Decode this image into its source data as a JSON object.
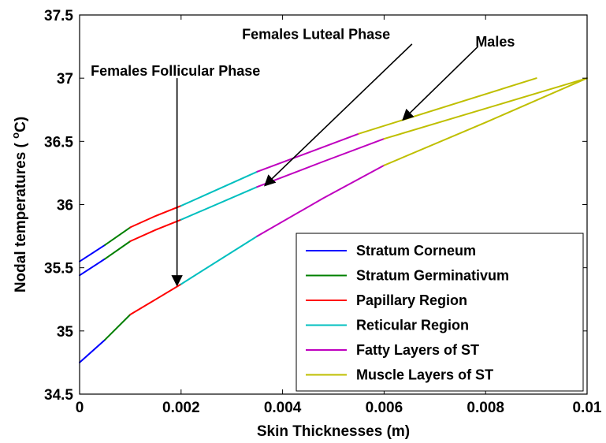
{
  "chart_data": {
    "type": "line",
    "xlabel": "Skin Thicknesses  (m)",
    "ylabel_main": "Nodal temperatures ( ",
    "ylabel_sup": "o",
    "ylabel_end": "C)",
    "xlim": [
      0,
      0.01
    ],
    "ylim": [
      34.5,
      37.5
    ],
    "xticks": [
      "0",
      "0.002",
      "0.004",
      "0.006",
      "0.008",
      "0.01"
    ],
    "xtick_values": [
      0,
      0.002,
      0.004,
      0.006,
      0.008,
      0.01
    ],
    "yticks": [
      "34.5",
      "35",
      "35.5",
      "36",
      "36.5",
      "37",
      "37.5"
    ],
    "ytick_values": [
      34.5,
      35,
      35.5,
      36,
      36.5,
      37,
      37.5
    ],
    "grid": false,
    "legend_position": "bottom-right",
    "legend": [
      {
        "label": "Stratum Corneum",
        "color": "#0000ff"
      },
      {
        "label": "Stratum Germinativum",
        "color": "#008000"
      },
      {
        "label": "Papillary Region",
        "color": "#ff0000"
      },
      {
        "label": "Reticular Region",
        "color": "#00bfbf"
      },
      {
        "label": "Fatty Layers of ST",
        "color": "#bf00bf"
      },
      {
        "label": "Muscle Layers of ST",
        "color": "#bfbf00"
      }
    ],
    "curves": [
      {
        "segments": [
          {
            "layer": 0,
            "points": [
              [
                0,
                35.55
              ],
              [
                0.0005,
                35.68
              ]
            ]
          },
          {
            "layer": 1,
            "points": [
              [
                0.0005,
                35.68
              ],
              [
                0.001,
                35.82
              ]
            ]
          },
          {
            "layer": 2,
            "points": [
              [
                0.001,
                35.82
              ],
              [
                0.0015,
                35.91
              ],
              [
                0.002,
                35.99
              ]
            ]
          },
          {
            "layer": 3,
            "points": [
              [
                0.002,
                35.99
              ],
              [
                0.0035,
                36.26
              ]
            ]
          },
          {
            "layer": 4,
            "points": [
              [
                0.0035,
                36.26
              ],
              [
                0.0045,
                36.41
              ],
              [
                0.0055,
                36.56
              ]
            ]
          },
          {
            "layer": 5,
            "points": [
              [
                0.0055,
                36.56
              ],
              [
                0.009,
                37.0
              ]
            ]
          }
        ]
      },
      {
        "segments": [
          {
            "layer": 0,
            "points": [
              [
                0,
                35.44
              ],
              [
                0.0005,
                35.57
              ]
            ]
          },
          {
            "layer": 1,
            "points": [
              [
                0.0005,
                35.57
              ],
              [
                0.001,
                35.71
              ]
            ]
          },
          {
            "layer": 2,
            "points": [
              [
                0.001,
                35.71
              ],
              [
                0.0015,
                35.8
              ],
              [
                0.002,
                35.88
              ]
            ]
          },
          {
            "layer": 3,
            "points": [
              [
                0.002,
                35.88
              ],
              [
                0.0035,
                36.14
              ]
            ]
          },
          {
            "layer": 4,
            "points": [
              [
                0.0035,
                36.14
              ],
              [
                0.0048,
                36.34
              ],
              [
                0.006,
                36.52
              ]
            ]
          },
          {
            "layer": 5,
            "points": [
              [
                0.006,
                36.52
              ],
              [
                0.01,
                37.0
              ]
            ]
          }
        ]
      },
      {
        "segments": [
          {
            "layer": 0,
            "points": [
              [
                0,
                34.75
              ],
              [
                0.0005,
                34.93
              ]
            ]
          },
          {
            "layer": 1,
            "points": [
              [
                0.0005,
                34.93
              ],
              [
                0.001,
                35.13
              ]
            ]
          },
          {
            "layer": 2,
            "points": [
              [
                0.001,
                35.13
              ],
              [
                0.0015,
                35.25
              ],
              [
                0.002,
                35.37
              ]
            ]
          },
          {
            "layer": 3,
            "points": [
              [
                0.002,
                35.37
              ],
              [
                0.0035,
                35.75
              ]
            ]
          },
          {
            "layer": 4,
            "points": [
              [
                0.0035,
                35.75
              ],
              [
                0.0048,
                36.05
              ],
              [
                0.006,
                36.31
              ]
            ]
          },
          {
            "layer": 5,
            "points": [
              [
                0.006,
                36.31
              ],
              [
                0.008,
                36.65
              ],
              [
                0.01,
                37.0
              ]
            ]
          }
        ]
      }
    ],
    "annotations": [
      {
        "text": "Females Luteal Phase",
        "text_x": 0.0032,
        "text_y": 37.31,
        "start": [
          0.00655,
          37.27
        ],
        "end": [
          0.00365,
          36.15
        ]
      },
      {
        "text": "Males",
        "text_x": 0.0078,
        "text_y": 37.25,
        "start": [
          0.00785,
          37.25
        ],
        "end": [
          0.00637,
          36.67
        ]
      },
      {
        "text": "Females Follicular Phase",
        "text_x": 0.00022,
        "text_y": 37.02,
        "start": [
          0.00192,
          37.0
        ],
        "end": [
          0.00192,
          35.36
        ]
      }
    ]
  }
}
